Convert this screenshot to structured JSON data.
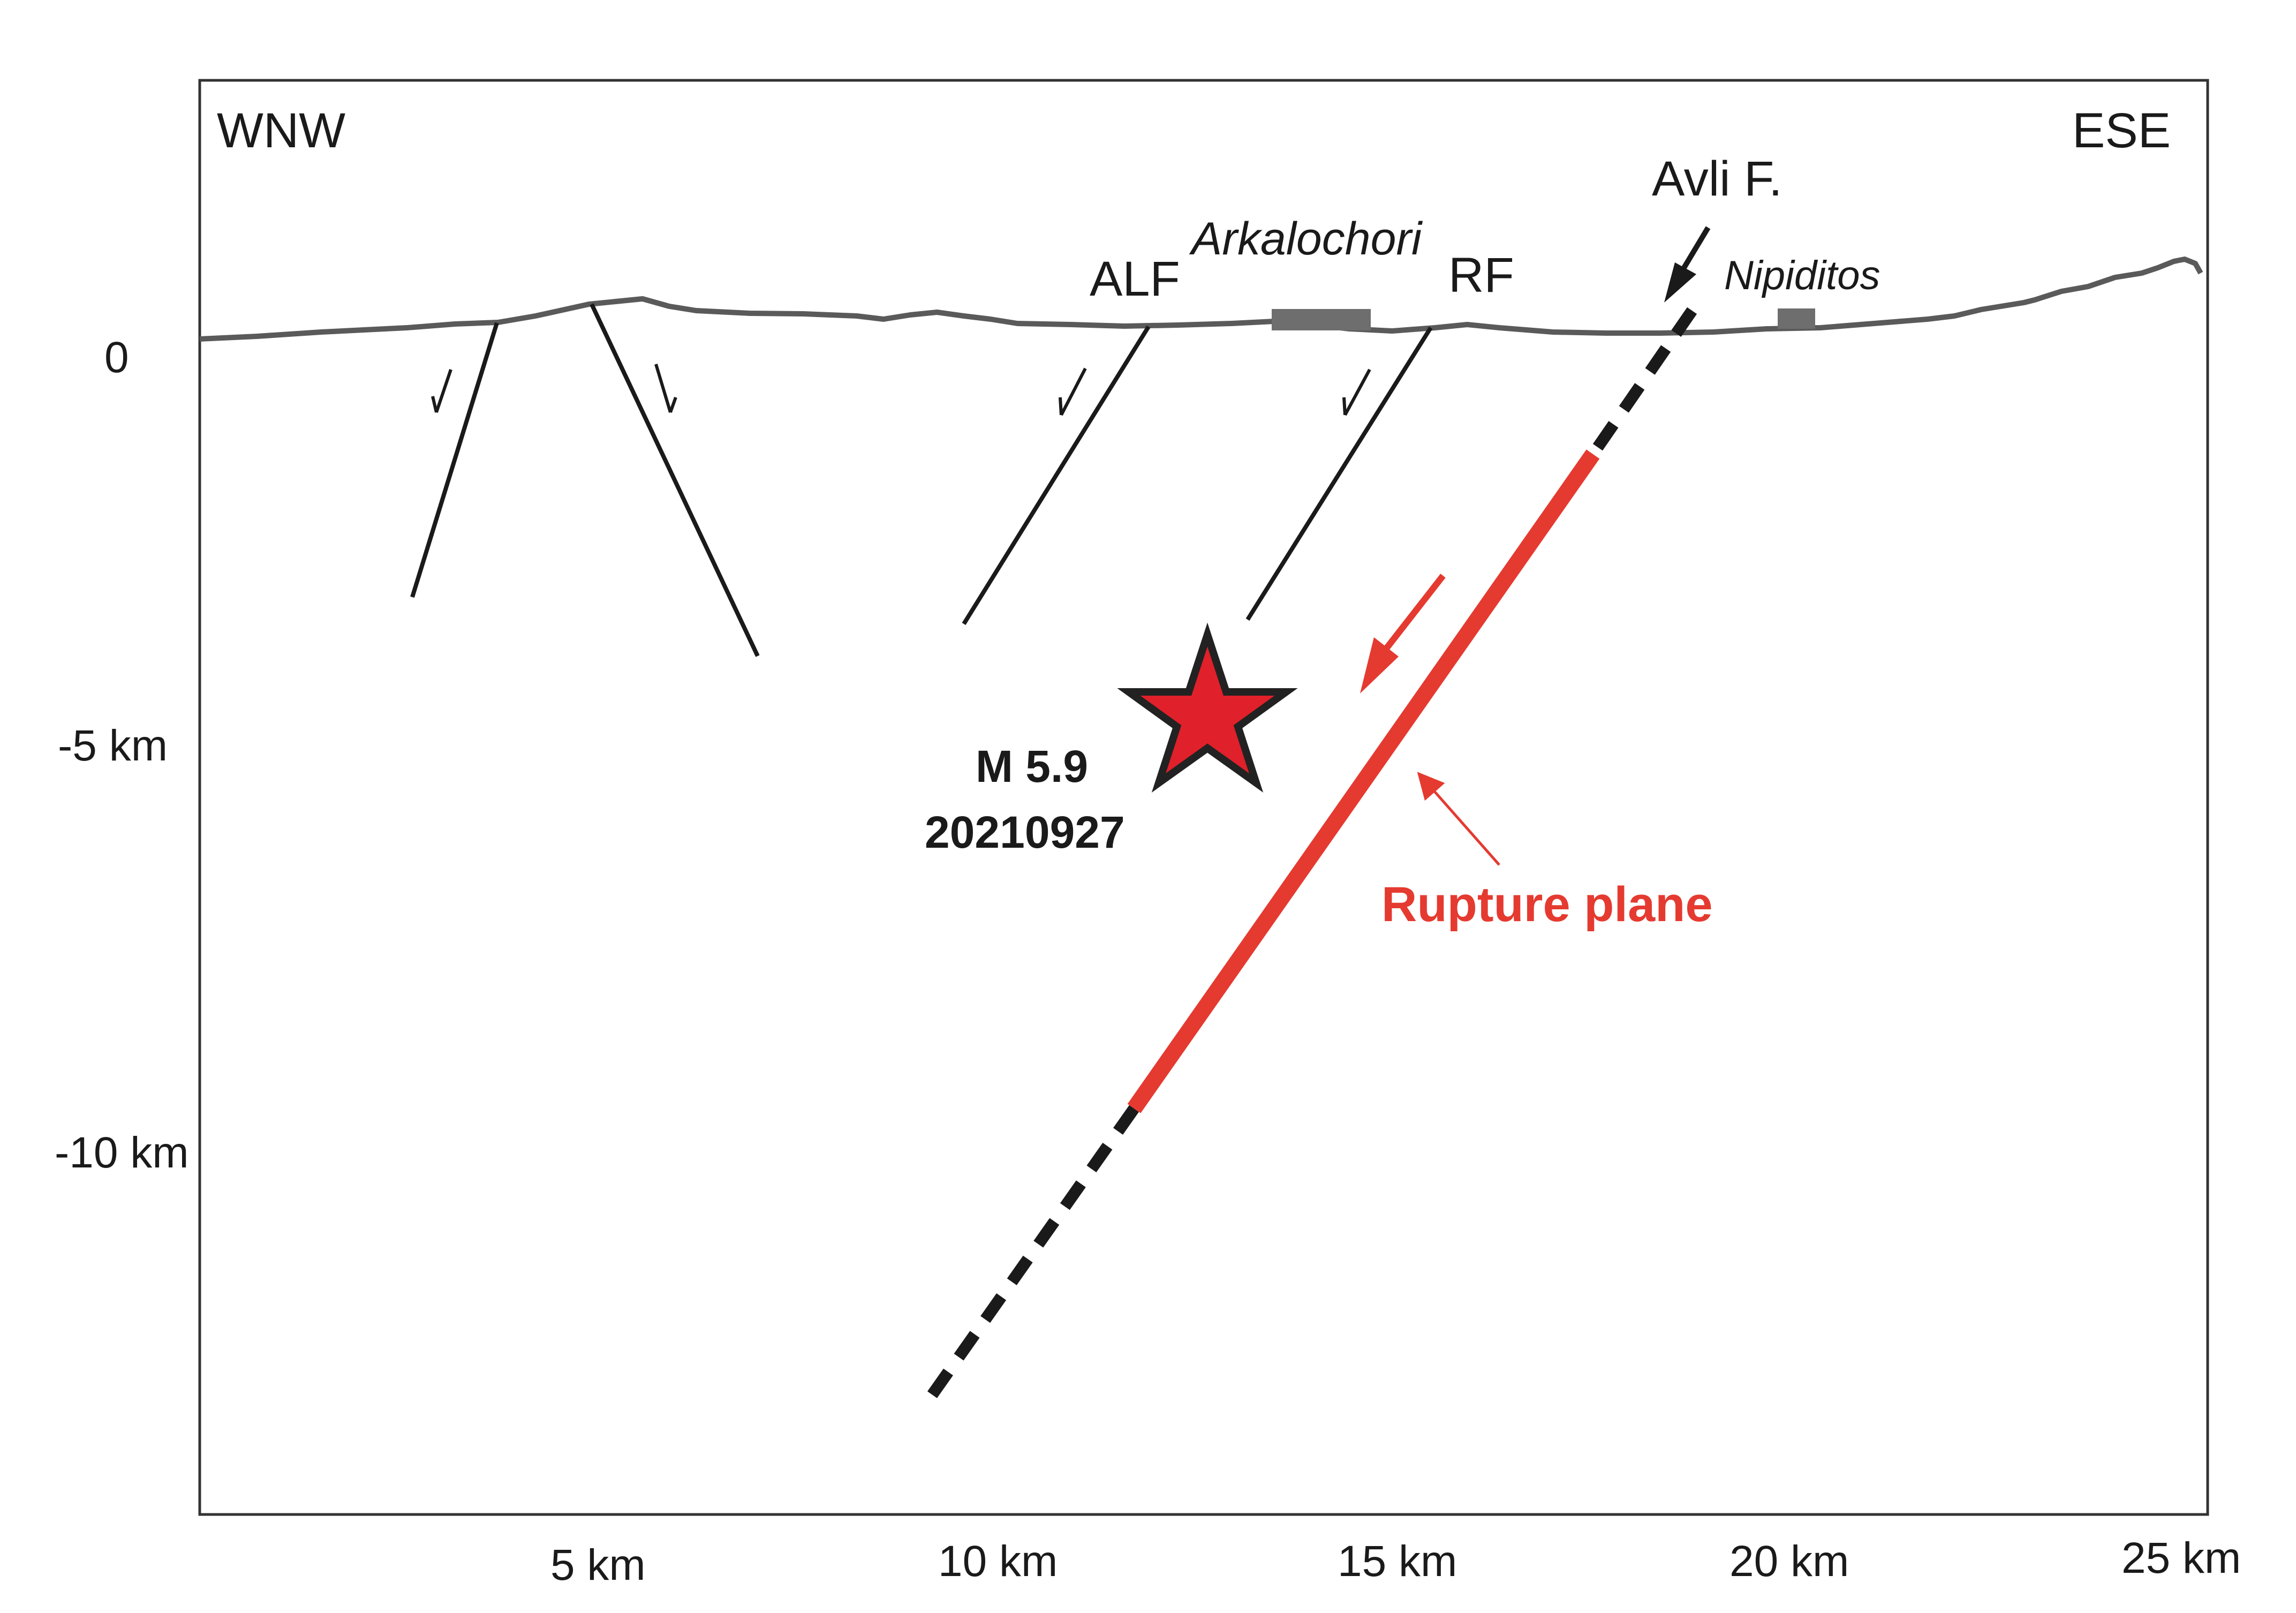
{
  "orientation": {
    "left": "WNW",
    "right": "ESE"
  },
  "y_axis_labels": [
    "0",
    "-5 km",
    "-10 km"
  ],
  "x_axis_labels": [
    "5 km",
    "10 km",
    "15 km",
    "20 km",
    "25 km"
  ],
  "faults": {
    "alf": "ALF",
    "rf": "RF",
    "avli": "Avli F."
  },
  "towns": {
    "arkalochori": "Arkalochori",
    "nipiditos": "Nipiditos"
  },
  "earthquake": {
    "magnitude": "M 5.9",
    "date": "20210927"
  },
  "rupture_label": "Rupture plane",
  "colors": {
    "frame": "#333333",
    "topography": "#5a5a5a",
    "fault": "#1a1a1a",
    "rupture": "#e53a30",
    "star_fill": "#e0202a",
    "star_stroke": "#222222",
    "town_block": "#6e6e6e"
  }
}
